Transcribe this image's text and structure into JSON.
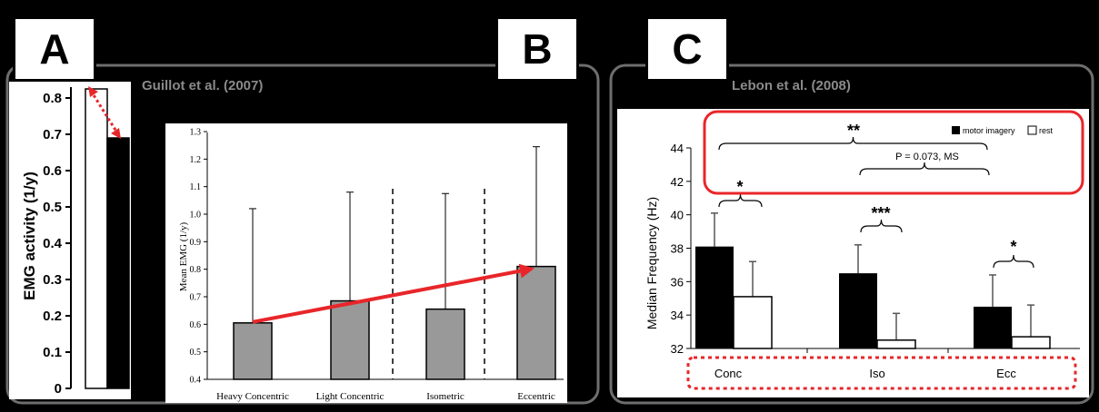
{
  "panels": {
    "a": {
      "label": "A"
    },
    "b": {
      "label": "B",
      "reference": "Guillot et al. (2007)"
    },
    "c": {
      "label": "C",
      "reference": "Lebon et al. (2008)"
    }
  },
  "colors": {
    "highlight": "#e8262a",
    "bar_gray": "#999999",
    "bar_black": "#000000",
    "panel_border": "#6e6e6e"
  },
  "chart_data": [
    {
      "type": "bar",
      "title": "",
      "xlabel": "",
      "ylabel": "EMG activity (1/y)",
      "ylim": [
        0,
        0.9
      ],
      "yticks": [
        "0",
        "0.1",
        "0.2",
        "0.3",
        "0.4",
        "0.5",
        "0.6",
        "0.7",
        "0.8"
      ],
      "categories": [
        "",
        ""
      ],
      "series": [
        {
          "values": [
            0.825,
            0.69
          ]
        }
      ],
      "bar_colors": [
        "#ffffff",
        "#000000"
      ],
      "annotation": "double-headed arrow between the two bar tops"
    },
    {
      "type": "bar",
      "title": "",
      "xlabel": "",
      "ylabel": "Mean EMG (1/y)",
      "ylim": [
        0.4,
        1.3
      ],
      "yticks": [
        "0.4",
        "0.5",
        "0.6",
        "0.7",
        "0.8",
        "0.9",
        "1.0",
        "1.1",
        "1.2",
        "1.3"
      ],
      "categories": [
        "Heavy Concentric",
        "Light Concentric",
        "Isometric",
        "Eccentric"
      ],
      "series": [
        {
          "values": [
            0.605,
            0.685,
            0.655,
            0.81
          ],
          "error_upper": [
            1.02,
            1.08,
            1.075,
            1.245
          ]
        }
      ],
      "grid": false,
      "annotation": "arrow from Heavy Concentric bar to Eccentric bar"
    },
    {
      "type": "bar",
      "title": "",
      "xlabel": "",
      "ylabel": "Median Frequency (Hz)",
      "ylim": [
        32,
        44
      ],
      "yticks": [
        "32",
        "34",
        "36",
        "38",
        "40",
        "42",
        "44"
      ],
      "categories": [
        "Conc",
        "Iso",
        "Ecc"
      ],
      "series": [
        {
          "name": "motor imagery",
          "values": [
            38.1,
            36.5,
            34.5
          ],
          "error_upper": [
            40.1,
            38.2,
            36.4
          ]
        },
        {
          "name": "rest",
          "values": [
            35.1,
            32.5,
            32.7
          ],
          "error_upper": [
            37.2,
            34.1,
            34.6
          ]
        }
      ],
      "legend": "top-right",
      "significance": [
        "*",
        "***",
        "*",
        "**"
      ],
      "annotation_text": "P = 0.073, MS"
    }
  ]
}
